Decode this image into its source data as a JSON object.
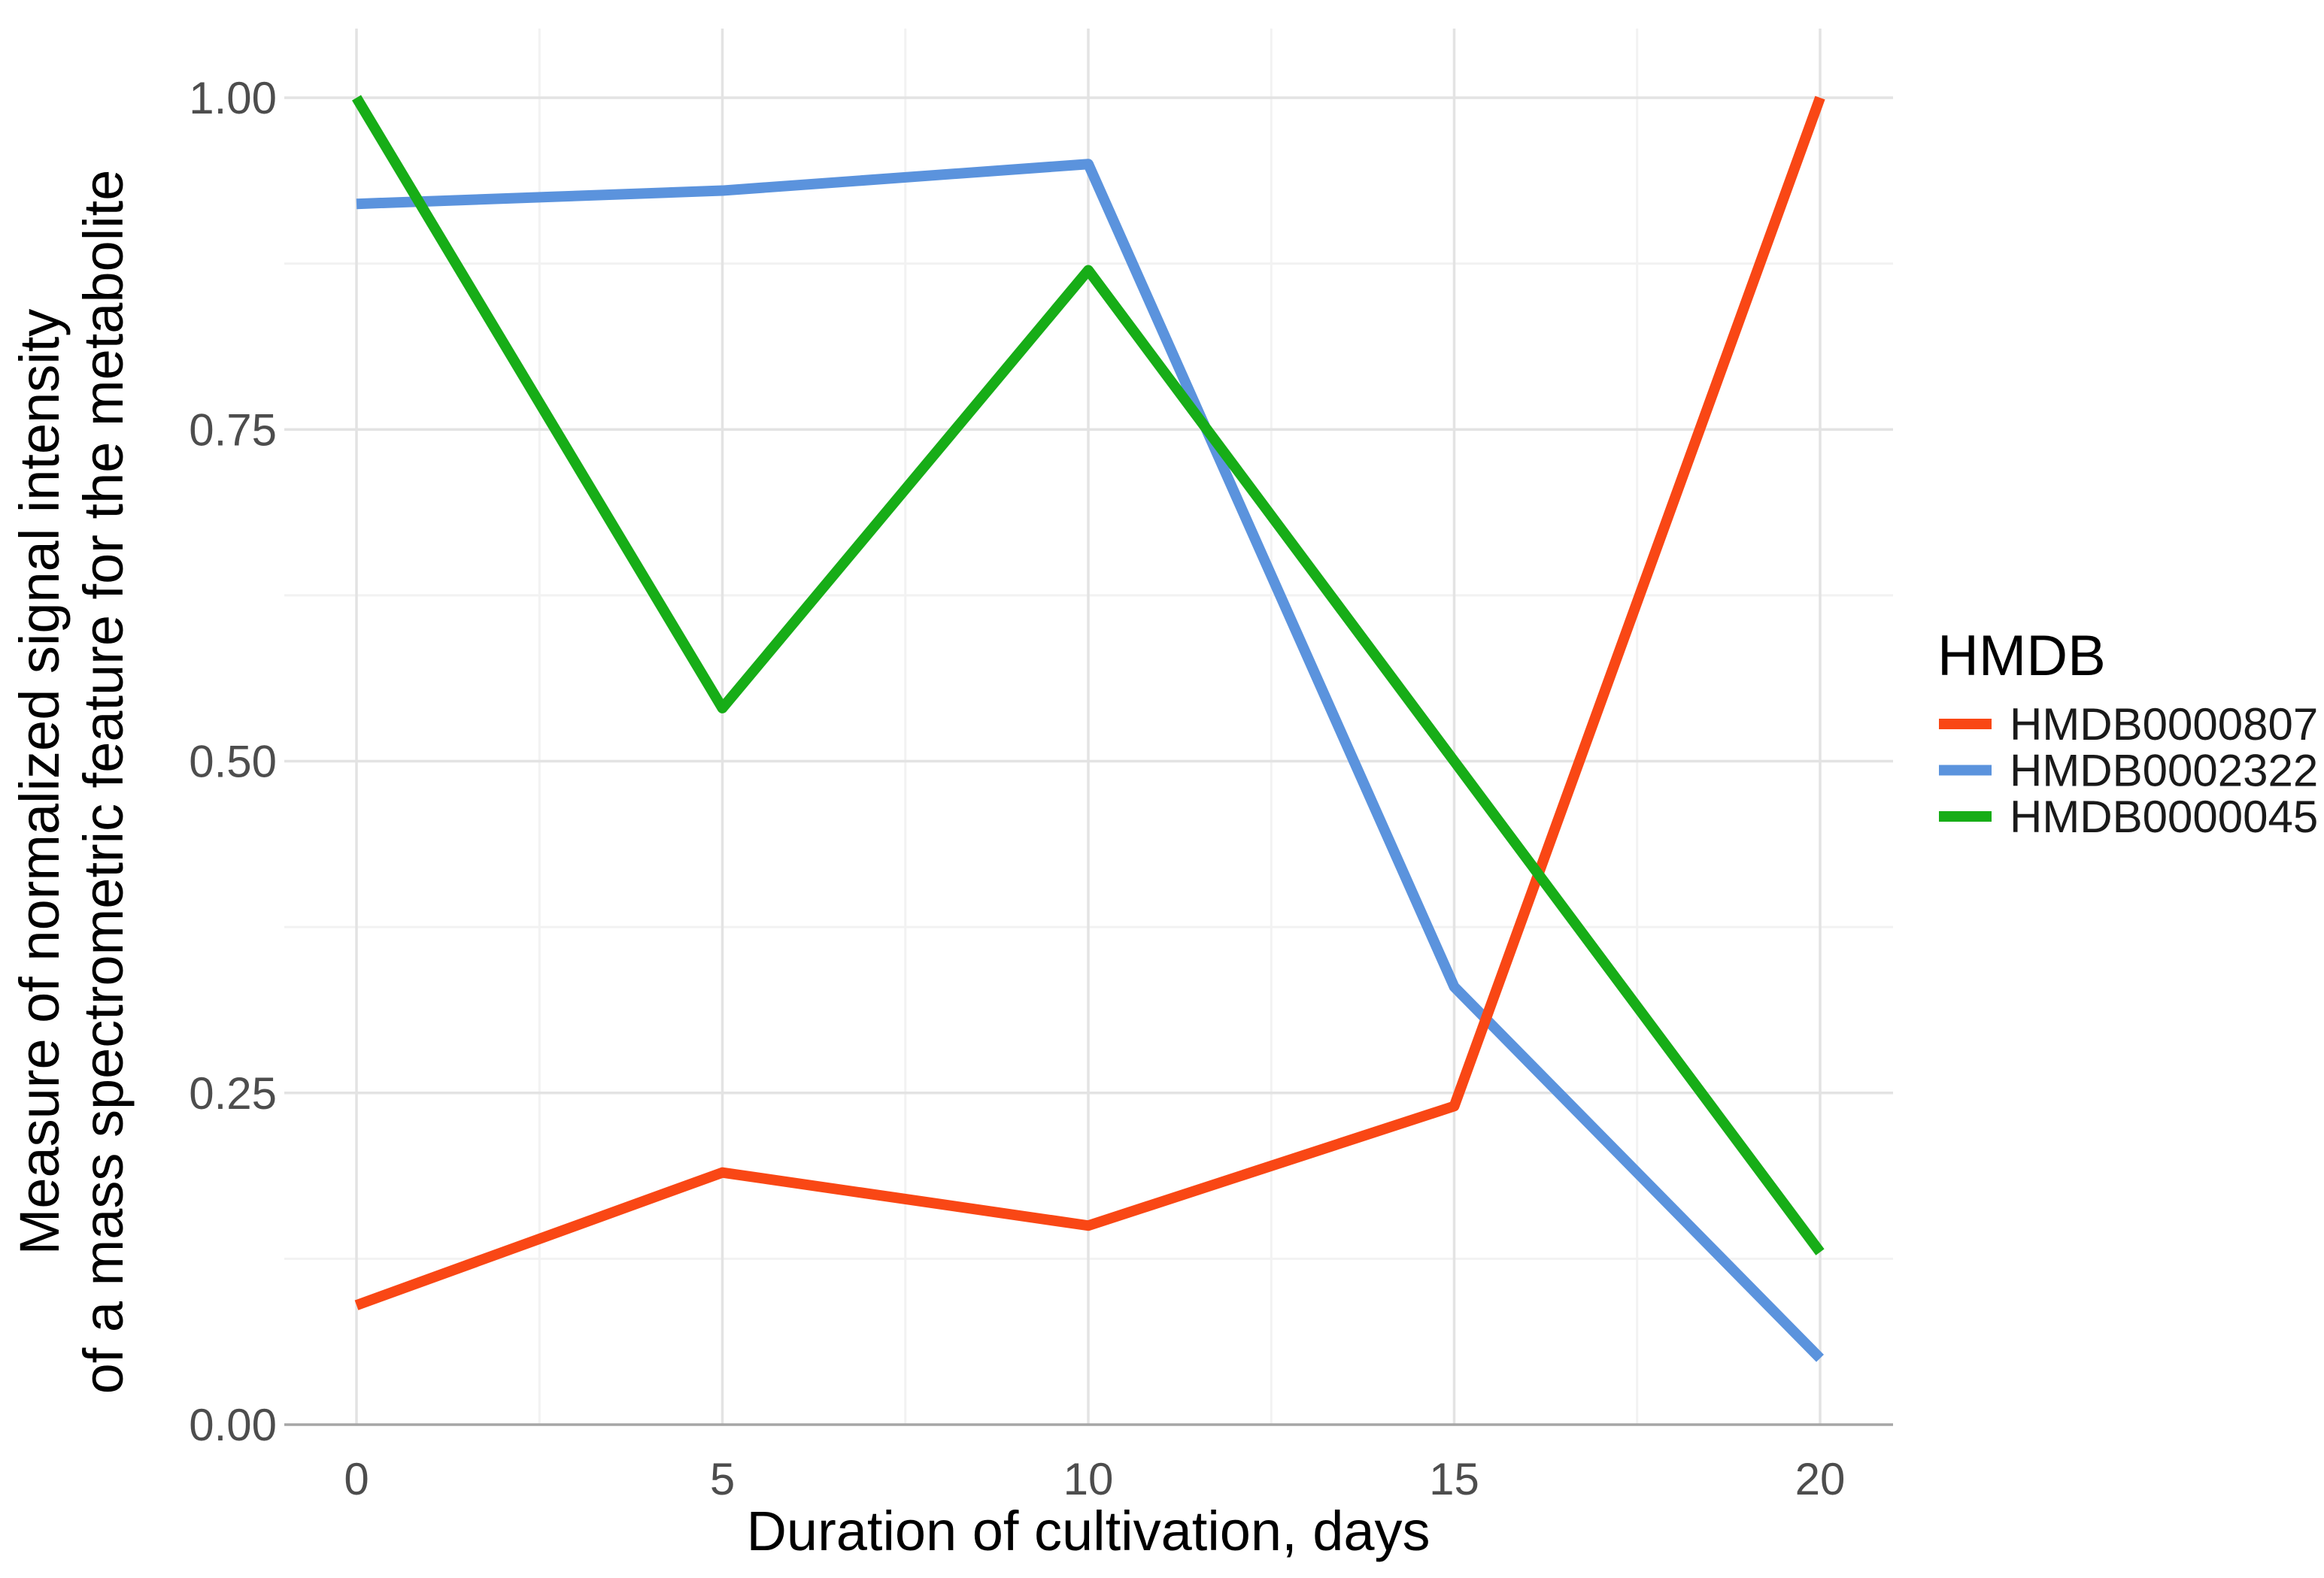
{
  "chart_data": {
    "type": "line",
    "title": "",
    "x": [
      0,
      5,
      10,
      15,
      20
    ],
    "xlabel": "Duration of cultivation, days",
    "ylabel_lines": [
      "Measure of normalized signal intensity",
      "of a mass spectrometric feature for the metabolite"
    ],
    "x_ticks": [
      "0",
      "5",
      "10",
      "15",
      "20"
    ],
    "y_ticks": [
      "0.00",
      "0.25",
      "0.50",
      "0.75",
      "1.00"
    ],
    "y_tick_values": [
      0,
      0.25,
      0.5,
      0.75,
      1.0
    ],
    "x_minor_ticks": [
      2.5,
      7.5,
      12.5,
      17.5
    ],
    "y_minor_ticks": [
      0.125,
      0.375,
      0.625,
      0.875
    ],
    "xlim": [
      -1,
      21
    ],
    "ylim": [
      0,
      1.05
    ],
    "grid": {
      "major": true,
      "minor": true
    },
    "legend": {
      "title": "HMDB",
      "position": "right"
    },
    "series": [
      {
        "name": "HMDB0000807",
        "color": "#F94715",
        "values": [
          0.09,
          0.19,
          0.15,
          0.24,
          1.0
        ]
      },
      {
        "name": "HMDB0002322",
        "color": "#5B93DD",
        "values": [
          0.92,
          0.93,
          0.95,
          0.33,
          0.05
        ]
      },
      {
        "name": "HMDB0000045",
        "color": "#17AD17",
        "values": [
          1.0,
          0.54,
          0.87,
          0.5,
          0.13
        ]
      }
    ],
    "draw_order": [
      "HMDB0002322",
      "HMDB0000807",
      "HMDB0000045"
    ],
    "colors": {
      "major_grid": "#E3E3E3",
      "minor_grid": "#F2F2F2",
      "axis_line": "#A6A6A6",
      "tick_text": "#4D4D4D",
      "title_text": "#000000",
      "legend_text": "#1A1A1A",
      "background": "#FFFFFF"
    }
  }
}
